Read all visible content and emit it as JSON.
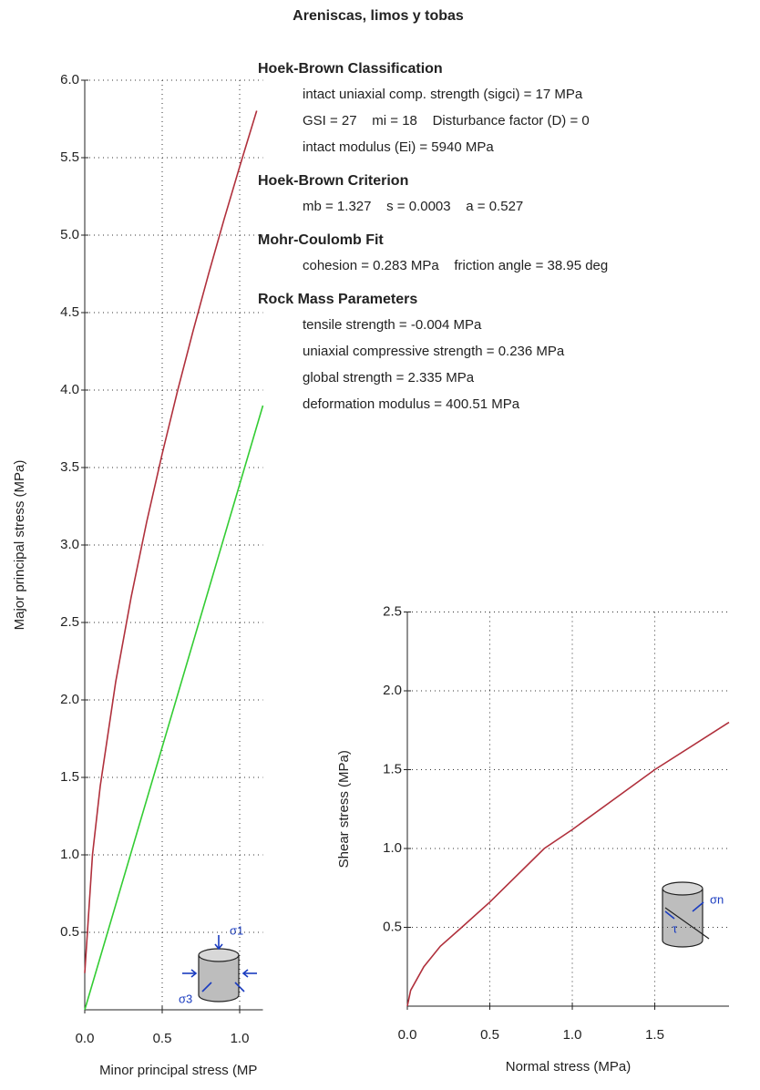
{
  "title": "Areniscas, limos y tobas",
  "info": [
    {
      "heading": "Hoek-Brown Classification",
      "lines": [
        "intact uniaxial comp. strength (sigci) = 17 MPa",
        "GSI = 27    mi = 18    Disturbance factor (D) = 0",
        "intact modulus (Ei) = 5940 MPa"
      ]
    },
    {
      "heading": "Hoek-Brown Criterion",
      "lines": [
        "mb = 1.327    s = 0.0003    a = 0.527"
      ]
    },
    {
      "heading": "Mohr-Coulomb Fit",
      "lines": [
        "cohesion = 0.283 MPa    friction angle = 38.95 deg"
      ]
    },
    {
      "heading": "Rock Mass Parameters",
      "lines": [
        "tensile strength = -0.004 MPa",
        "uniaxial compressive strength = 0.236 MPa",
        "global strength = 2.335 MPa",
        "deformation modulus = 400.51 MPa"
      ]
    }
  ],
  "chart_data": [
    {
      "type": "line",
      "x_label": "Minor principal stress (MP",
      "y_label": "Major principal stress (MPa)",
      "xlim": [
        0,
        1.15
      ],
      "ylim": [
        0,
        6
      ],
      "xticks": [
        {
          "value": 0,
          "label": "0.0"
        },
        0.5,
        {
          "value": 1,
          "label": "1.0"
        }
      ],
      "yticks": [
        0.5,
        {
          "value": 1,
          "label": "1.0"
        },
        1.5,
        {
          "value": 2,
          "label": "2.0"
        },
        2.5,
        {
          "value": 3,
          "label": "3.0"
        },
        3.5,
        {
          "value": 4,
          "label": "4.0"
        },
        4.5,
        {
          "value": 5,
          "label": "5.0"
        },
        5.5,
        {
          "value": 6,
          "label": "6.0"
        }
      ],
      "grid": true,
      "annotations": [
        "σ1",
        "σ3"
      ],
      "series": [
        {
          "color": "#b0303c",
          "x": [
            0,
            0.05,
            0.1,
            0.2,
            0.3,
            0.4,
            0.5,
            0.6,
            0.7,
            0.8,
            0.9,
            1.0,
            1.11
          ],
          "values": [
            0.237,
            1.001,
            1.444,
            2.118,
            2.666,
            3.15,
            3.589,
            3.999,
            4.384,
            4.752,
            5.104,
            5.442,
            5.803
          ]
        },
        {
          "color": "#33cc33",
          "x": [
            0,
            1.15
          ],
          "values": [
            0,
            3.9
          ]
        }
      ]
    },
    {
      "type": "line",
      "x_label": "Normal stress (MPa)",
      "y_label": "Shear stress (MPa)",
      "xlim": [
        0,
        1.95
      ],
      "ylim": [
        0,
        2.5
      ],
      "xticks": [
        {
          "value": 0,
          "label": "0.0"
        },
        0.5,
        {
          "value": 1,
          "label": "1.0"
        },
        1.5
      ],
      "yticks": [
        0.5,
        {
          "value": 1,
          "label": "1.0"
        },
        1.5,
        {
          "value": 2,
          "label": "2.0"
        },
        2.5
      ],
      "grid": true,
      "annotations": [
        "σn",
        "τ"
      ],
      "series": [
        {
          "color": "#b0303c",
          "x": [
            0,
            0.02,
            0.1,
            0.2,
            0.33,
            0.5,
            0.83,
            1.0,
            1.5,
            1.95
          ],
          "values": [
            0,
            0.1,
            0.25,
            0.38,
            0.5,
            0.66,
            1.0,
            1.12,
            1.5,
            1.8
          ]
        }
      ]
    }
  ]
}
